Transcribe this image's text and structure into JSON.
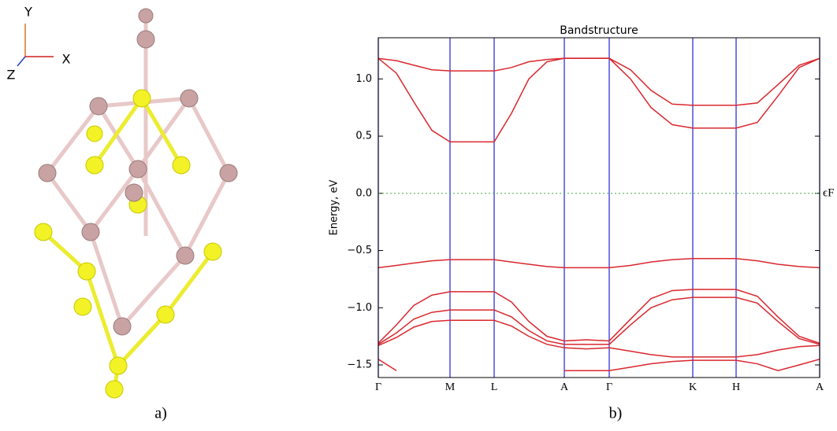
{
  "chart_data": {
    "type": "line",
    "title": "Bandstructure",
    "y_label": "Energy, eV",
    "x": [
      0,
      23,
      45,
      68,
      91,
      119,
      147,
      169,
      191,
      214,
      236,
      264,
      293,
      320,
      346,
      373,
      399,
      426,
      454,
      481,
      507,
      534,
      560
    ],
    "xlim": [
      0,
      560
    ],
    "ylim": [
      -1.61,
      1.36
    ],
    "xticks": [
      {
        "value": 0,
        "label": "Γ"
      },
      {
        "value": 91,
        "label": "M"
      },
      {
        "value": 147,
        "label": "L"
      },
      {
        "value": 236,
        "label": "A"
      },
      {
        "value": 293,
        "label": "Γ"
      },
      {
        "value": 399,
        "label": "K"
      },
      {
        "value": 454,
        "label": "H"
      },
      {
        "value": 560,
        "label": "A"
      }
    ],
    "yticks": [
      {
        "value": 1.0,
        "label": "1.0"
      },
      {
        "value": 0.5,
        "label": "0.5"
      },
      {
        "value": 0.0,
        "label": "0.0"
      },
      {
        "value": -0.5,
        "label": "−0.5"
      },
      {
        "value": -1.0,
        "label": "−1.0"
      },
      {
        "value": -1.5,
        "label": "−1.5"
      }
    ],
    "grid_color": "#3333dd",
    "fermi_level": 0,
    "fermi_label": "ϵF",
    "fermi_color": "#44aa44",
    "series": [
      {
        "color": "#d9272e",
        "values": [
          1.18,
          1.16,
          1.12,
          1.08,
          1.07,
          1.07,
          1.07,
          1.1,
          1.15,
          1.17,
          1.18,
          1.18,
          1.18,
          1.08,
          0.9,
          0.78,
          0.77,
          0.77,
          0.77,
          0.79,
          0.95,
          1.12,
          1.18
        ]
      },
      {
        "color": "#d9272e",
        "values": [
          1.18,
          1.05,
          0.8,
          0.55,
          0.45,
          0.45,
          0.45,
          0.7,
          1.0,
          1.15,
          1.18,
          1.18,
          1.18,
          1.0,
          0.75,
          0.6,
          0.57,
          0.57,
          0.57,
          0.62,
          0.85,
          1.1,
          1.18
        ]
      },
      {
        "color": "#d9272e",
        "values": [
          -0.65,
          -0.63,
          -0.61,
          -0.59,
          -0.58,
          -0.58,
          -0.58,
          -0.6,
          -0.62,
          -0.64,
          -0.65,
          -0.65,
          -0.65,
          -0.63,
          -0.6,
          -0.58,
          -0.57,
          -0.57,
          -0.57,
          -0.59,
          -0.62,
          -0.64,
          -0.65
        ]
      },
      {
        "color": "#d9272e",
        "values": [
          -1.31,
          -1.15,
          -0.98,
          -0.89,
          -0.86,
          -0.86,
          -0.86,
          -0.95,
          -1.12,
          -1.25,
          -1.29,
          -1.28,
          -1.29,
          -1.1,
          -0.92,
          -0.85,
          -0.84,
          -0.84,
          -0.84,
          -0.9,
          -1.08,
          -1.25,
          -1.31
        ]
      },
      {
        "color": "#d9272e",
        "values": [
          -1.32,
          -1.22,
          -1.1,
          -1.04,
          -1.02,
          -1.02,
          -1.02,
          -1.08,
          -1.2,
          -1.29,
          -1.32,
          -1.32,
          -1.32,
          -1.15,
          -1.0,
          -0.93,
          -0.91,
          -0.91,
          -0.91,
          -0.96,
          -1.12,
          -1.27,
          -1.32
        ]
      },
      {
        "color": "#d9272e",
        "values": [
          -1.33,
          -1.26,
          -1.17,
          -1.12,
          -1.11,
          -1.11,
          -1.11,
          -1.16,
          -1.25,
          -1.32,
          -1.35,
          -1.36,
          -1.35,
          -1.38,
          -1.41,
          -1.43,
          -1.43,
          -1.43,
          -1.43,
          -1.41,
          -1.37,
          -1.34,
          -1.33
        ]
      },
      {
        "color": "#d9272e",
        "values": [
          -1.45,
          -1.55,
          null,
          null,
          null,
          null,
          null,
          null,
          null,
          null,
          -1.55,
          -1.55,
          -1.55,
          -1.52,
          -1.49,
          -1.47,
          -1.46,
          -1.46,
          -1.46,
          -1.49,
          -1.55,
          -1.5,
          -1.45
        ]
      }
    ]
  },
  "structure": {
    "axes": [
      "Y",
      "X",
      "Z"
    ]
  },
  "panel_labels": [
    "a)",
    "b)"
  ]
}
